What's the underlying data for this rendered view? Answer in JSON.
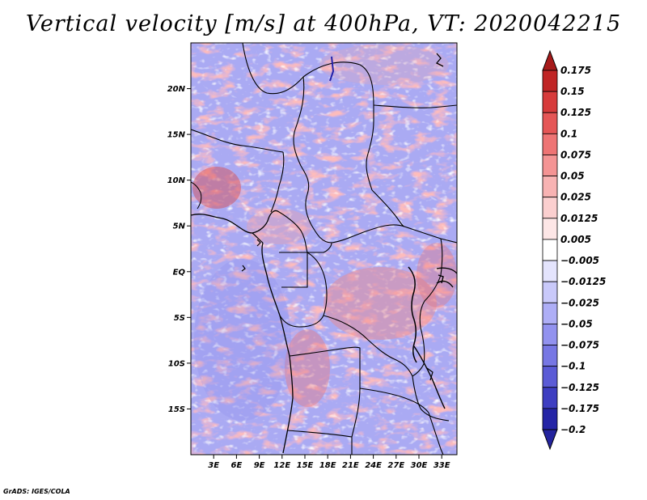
{
  "title": "Vertical velocity [m/s] at 400hPa, VT: 2020042215",
  "credit": "GrADS: IGES/COLA",
  "map": {
    "lon_range": [
      0,
      35
    ],
    "lat_range": [
      -20,
      25
    ],
    "lat_ticks": [
      {
        "value": 20,
        "label": "20N"
      },
      {
        "value": 15,
        "label": "15N"
      },
      {
        "value": 10,
        "label": "10N"
      },
      {
        "value": 5,
        "label": "5N"
      },
      {
        "value": 0,
        "label": "EQ"
      },
      {
        "value": -5,
        "label": "5S"
      },
      {
        "value": -10,
        "label": "10S"
      },
      {
        "value": -15,
        "label": "15S"
      }
    ],
    "lon_ticks": [
      {
        "value": 3,
        "label": "3E"
      },
      {
        "value": 6,
        "label": "6E"
      },
      {
        "value": 9,
        "label": "9E"
      },
      {
        "value": 12,
        "label": "12E"
      },
      {
        "value": 15,
        "label": "15E"
      },
      {
        "value": 18,
        "label": "18E"
      },
      {
        "value": 21,
        "label": "21E"
      },
      {
        "value": 24,
        "label": "24E"
      },
      {
        "value": 27,
        "label": "27E"
      },
      {
        "value": 30,
        "label": "30E"
      },
      {
        "value": 33,
        "label": "33E"
      }
    ]
  },
  "colorbar": {
    "levels": [
      {
        "label": "0.175",
        "color": "#a11818"
      },
      {
        "label": "0.15",
        "color": "#c02525"
      },
      {
        "label": "0.125",
        "color": "#d73b3b"
      },
      {
        "label": "0.1",
        "color": "#e55656"
      },
      {
        "label": "0.075",
        "color": "#ee7474"
      },
      {
        "label": "0.05",
        "color": "#f49494"
      },
      {
        "label": "0.025",
        "color": "#f8b3b3"
      },
      {
        "label": "0.0125",
        "color": "#fbcfcf"
      },
      {
        "label": "0.005",
        "color": "#fde6e6"
      },
      {
        "label": "−0.005",
        "color": "#ffffff"
      },
      {
        "label": "−0.0125",
        "color": "#e4e4fd"
      },
      {
        "label": "−0.025",
        "color": "#c9c9fa"
      },
      {
        "label": "−0.05",
        "color": "#aeaef6"
      },
      {
        "label": "−0.075",
        "color": "#9292ef"
      },
      {
        "label": "−0.1",
        "color": "#7777e4"
      },
      {
        "label": "−0.125",
        "color": "#5b5bd6"
      },
      {
        "label": "−0.175",
        "color": "#3d3dc1"
      },
      {
        "label": "−0.2",
        "color": "#2424a6"
      }
    ],
    "top_color": "#a61a1a",
    "bottom_color": "#24249e"
  }
}
